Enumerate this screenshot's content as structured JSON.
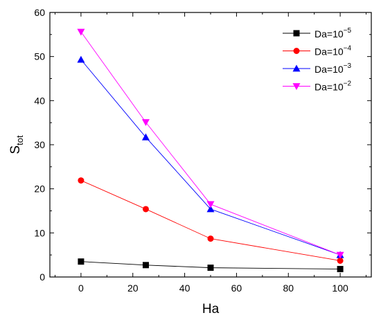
{
  "chart_data": {
    "type": "line",
    "xlabel": "Ha",
    "ylabel": {
      "main": "S",
      "sub": "tot"
    },
    "xlim": [
      -12,
      112
    ],
    "ylim": [
      0,
      60
    ],
    "xticks": [
      0,
      20,
      40,
      60,
      80,
      100
    ],
    "yticks": [
      0,
      10,
      20,
      30,
      40,
      50,
      60
    ],
    "grid": false,
    "legend_position": "top-right",
    "x": [
      0,
      25,
      50,
      100
    ],
    "series": [
      {
        "label": {
          "base": "Da=10",
          "exp": "−5"
        },
        "color": "#000000",
        "marker": "square",
        "values": [
          3.5,
          2.7,
          2.1,
          1.8
        ]
      },
      {
        "label": {
          "base": "Da=10",
          "exp": "−4"
        },
        "color": "#ff0000",
        "marker": "circle",
        "values": [
          21.9,
          15.4,
          8.7,
          3.7
        ]
      },
      {
        "label": {
          "base": "Da=10",
          "exp": "−3"
        },
        "color": "#0000ff",
        "marker": "triangle-up",
        "values": [
          49.3,
          31.7,
          15.4,
          5.0
        ]
      },
      {
        "label": {
          "base": "Da=10",
          "exp": "−2"
        },
        "color": "#ff00ff",
        "marker": "triangle-down",
        "values": [
          55.6,
          35.1,
          16.5,
          5.0
        ]
      }
    ]
  }
}
